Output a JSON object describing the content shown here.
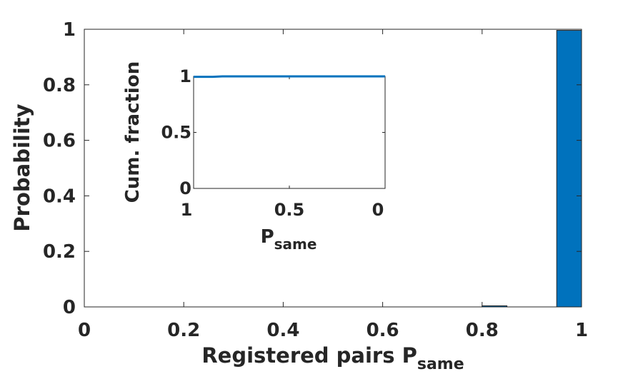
{
  "chart_data": [
    {
      "type": "bar",
      "xlabel_main": "Registered pairs P",
      "xlabel_sub": "same",
      "ylabel": "Probability",
      "xlim": [
        0,
        1
      ],
      "ylim": [
        0,
        1
      ],
      "xticks": [
        0,
        0.2,
        0.4,
        0.6,
        0.8,
        1
      ],
      "xtick_labels": [
        "0",
        "0.2",
        "0.4",
        "0.6",
        "0.8",
        "1"
      ],
      "yticks": [
        0,
        0.2,
        0.4,
        0.6,
        0.8,
        1
      ],
      "ytick_labels": [
        "0",
        "0.2",
        "0.4",
        "0.6",
        "0.8",
        "1"
      ],
      "bin_width": 0.05,
      "bars": [
        {
          "center": 0.825,
          "value": 0.004
        },
        {
          "center": 0.975,
          "value": 0.996
        }
      ],
      "bar_color": "#0072BD",
      "grid": false
    },
    {
      "type": "line",
      "role": "inset",
      "xlabel_main": "P",
      "xlabel_sub": "same",
      "ylabel": "Cum. fraction",
      "x_reversed": true,
      "xlim": [
        0,
        1
      ],
      "ylim": [
        0,
        1
      ],
      "xticks": [
        1,
        0.5,
        0
      ],
      "xtick_labels": [
        "1",
        "0.5",
        "0"
      ],
      "yticks": [
        0,
        0.5,
        1
      ],
      "ytick_labels": [
        "0",
        "0.5",
        "1"
      ],
      "x": [
        1,
        0.95,
        0.9,
        0.85,
        0.8,
        0.5,
        0
      ],
      "y": [
        0.996,
        0.996,
        0.996,
        1,
        1,
        1,
        1
      ],
      "line_color": "#0072BD"
    }
  ]
}
